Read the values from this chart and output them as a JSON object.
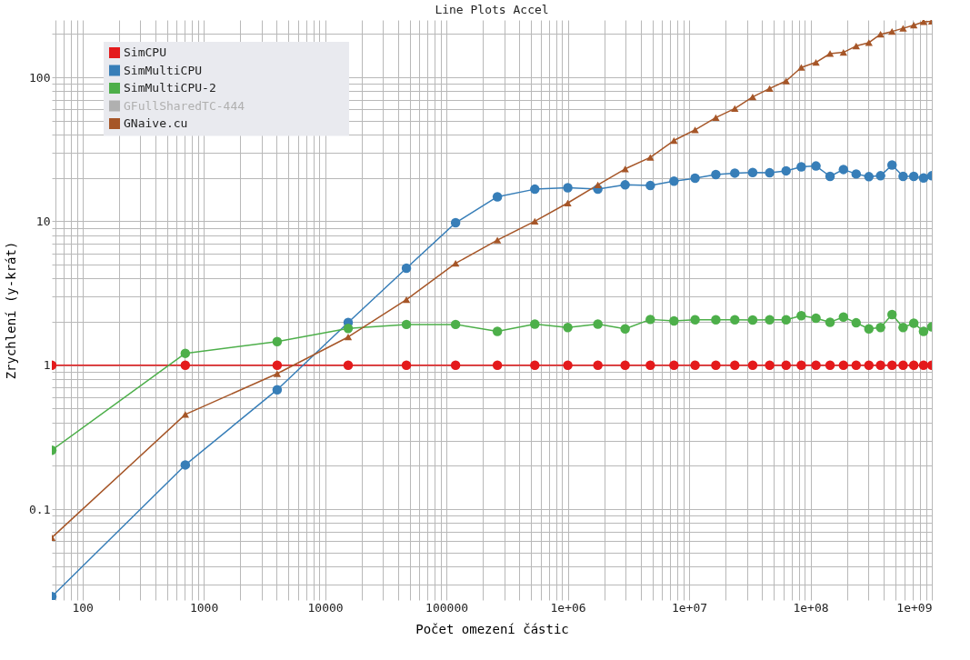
{
  "chart_data": {
    "type": "line",
    "title": "Line Plots Accel",
    "xlabel": "Počet omezení částic",
    "ylabel": "Zrychlení (y-krát)",
    "log": "xy",
    "grid": true,
    "legend": "top left",
    "xlim": [
      56,
      1000000000
    ],
    "ylim": [
      0.0234,
      250
    ],
    "xticks": [
      {
        "value": 60,
        "label": null
      },
      {
        "value": 70,
        "label": null
      },
      {
        "value": 80,
        "label": null
      },
      {
        "value": 90,
        "label": null
      },
      100,
      {
        "value": 200,
        "label": null
      },
      {
        "value": 300,
        "label": null
      },
      {
        "value": 400,
        "label": null
      },
      {
        "value": 500,
        "label": null
      },
      {
        "value": 600,
        "label": null
      },
      {
        "value": 700,
        "label": null
      },
      {
        "value": 800,
        "label": null
      },
      {
        "value": 900,
        "label": null
      },
      1000,
      {
        "value": 2000,
        "label": null
      },
      {
        "value": 3000,
        "label": null
      },
      {
        "value": 4000,
        "label": null
      },
      {
        "value": 5000,
        "label": null
      },
      {
        "value": 6000,
        "label": null
      },
      {
        "value": 7000,
        "label": null
      },
      {
        "value": 8000,
        "label": null
      },
      {
        "value": 9000,
        "label": null
      },
      10000,
      {
        "value": 20000,
        "label": null
      },
      {
        "value": 30000,
        "label": null
      },
      {
        "value": 40000,
        "label": null
      },
      {
        "value": 50000,
        "label": null
      },
      {
        "value": 60000,
        "label": null
      },
      {
        "value": 70000,
        "label": null
      },
      {
        "value": 80000,
        "label": null
      },
      {
        "value": 90000,
        "label": null
      },
      100000,
      {
        "value": 200000,
        "label": null
      },
      {
        "value": 300000,
        "label": null
      },
      {
        "value": 400000,
        "label": null
      },
      {
        "value": 500000,
        "label": null
      },
      {
        "value": 600000,
        "label": null
      },
      {
        "value": 700000,
        "label": null
      },
      {
        "value": 800000,
        "label": null
      },
      {
        "value": 900000,
        "label": null
      },
      {
        "value": 1000000,
        "label": "1e+06"
      },
      {
        "value": 2000000,
        "label": null
      },
      {
        "value": 3000000,
        "label": null
      },
      {
        "value": 4000000,
        "label": null
      },
      {
        "value": 5000000,
        "label": null
      },
      {
        "value": 6000000,
        "label": null
      },
      {
        "value": 7000000,
        "label": null
      },
      {
        "value": 8000000,
        "label": null
      },
      {
        "value": 9000000,
        "label": null
      },
      {
        "value": 10000000,
        "label": "1e+07"
      },
      {
        "value": 20000000,
        "label": null
      },
      {
        "value": 30000000,
        "label": null
      },
      {
        "value": 40000000,
        "label": null
      },
      {
        "value": 50000000,
        "label": null
      },
      {
        "value": 60000000,
        "label": null
      },
      {
        "value": 70000000,
        "label": null
      },
      {
        "value": 80000000,
        "label": null
      },
      {
        "value": 90000000,
        "label": null
      },
      {
        "value": 100000000,
        "label": "1e+08"
      },
      {
        "value": 200000000,
        "label": null
      },
      {
        "value": 300000000,
        "label": null
      },
      {
        "value": 400000000,
        "label": null
      },
      {
        "value": 500000000,
        "label": null
      },
      {
        "value": 600000000,
        "label": null
      },
      {
        "value": 700000000,
        "label": null
      },
      {
        "value": 800000000,
        "label": null
      },
      {
        "value": 900000000,
        "label": null
      },
      {
        "value": 1000000000,
        "label": "1e+09"
      }
    ],
    "yticks": [
      {
        "value": 0.03,
        "label": null
      },
      {
        "value": 0.04,
        "label": null
      },
      {
        "value": 0.05,
        "label": null
      },
      {
        "value": 0.06,
        "label": null
      },
      {
        "value": 0.07,
        "label": null
      },
      {
        "value": 0.08,
        "label": null
      },
      {
        "value": 0.09,
        "label": null
      },
      0.1,
      {
        "value": 0.2,
        "label": null
      },
      {
        "value": 0.3,
        "label": null
      },
      {
        "value": 0.4,
        "label": null
      },
      {
        "value": 0.5,
        "label": null
      },
      {
        "value": 0.6,
        "label": null
      },
      {
        "value": 0.7,
        "label": null
      },
      {
        "value": 0.8,
        "label": null
      },
      {
        "value": 0.9,
        "label": null
      },
      1,
      {
        "value": 2,
        "label": null
      },
      {
        "value": 3,
        "label": null
      },
      {
        "value": 4,
        "label": null
      },
      {
        "value": 5,
        "label": null
      },
      {
        "value": 6,
        "label": null
      },
      {
        "value": 7,
        "label": null
      },
      {
        "value": 8,
        "label": null
      },
      {
        "value": 9,
        "label": null
      },
      10,
      {
        "value": 20,
        "label": null
      },
      {
        "value": 30,
        "label": null
      },
      {
        "value": 40,
        "label": null
      },
      {
        "value": 50,
        "label": null
      },
      {
        "value": 60,
        "label": null
      },
      {
        "value": 70,
        "label": null
      },
      {
        "value": 80,
        "label": null
      },
      {
        "value": 90,
        "label": null
      },
      100,
      {
        "value": 200,
        "label": null
      }
    ],
    "x": [
      56,
      705,
      4030,
      15500,
      46800,
      119000,
      263000,
      535000,
      1000000,
      1770000,
      2970000,
      4790000,
      7500000,
      11200000,
      16600000,
      23800000,
      33400000,
      46100000,
      63000000,
      84000000,
      111000000,
      145000000,
      187000000,
      238000000,
      303000000,
      378000000,
      470000000,
      580000000,
      710000000,
      855000000,
      1000000000
    ],
    "series": [
      {
        "name": "SimCPU",
        "color": "#e41a1c",
        "marker": "circle",
        "values": [
          1,
          1,
          1,
          1,
          1,
          1,
          1,
          1,
          1,
          1,
          1,
          1,
          1,
          1,
          1,
          1,
          1,
          1,
          1,
          1,
          1,
          1,
          1,
          1,
          1,
          1,
          1,
          1,
          1,
          1,
          1
        ]
      },
      {
        "name": "SimMultiCPU",
        "color": "#377eb8",
        "marker": "circle",
        "values": [
          0.0247,
          0.203,
          0.676,
          1.98,
          4.72,
          9.76,
          14.8,
          16.7,
          17.1,
          16.7,
          17.9,
          17.7,
          19.0,
          19.9,
          21.1,
          21.6,
          21.8,
          21.7,
          22.4,
          23.9,
          24.2,
          20.5,
          22.9,
          21.3,
          20.4,
          20.7,
          24.6,
          20.5,
          20.5,
          20.0,
          20.7
        ]
      },
      {
        "name": "SimMultiCPU-2",
        "color": "#4daf4a",
        "marker": "circle",
        "values": [
          0.257,
          1.21,
          1.46,
          1.8,
          1.92,
          1.92,
          1.72,
          1.93,
          1.83,
          1.93,
          1.79,
          2.08,
          2.03,
          2.07,
          2.07,
          2.07,
          2.06,
          2.07,
          2.07,
          2.21,
          2.12,
          1.99,
          2.16,
          1.97,
          1.79,
          1.83,
          2.25,
          1.83,
          1.96,
          1.72,
          1.85
        ]
      },
      {
        "name": "GFullSharedTC-444",
        "color": "#b0b0b0",
        "values": [
          null,
          null,
          null,
          null,
          null,
          null,
          null,
          null,
          null,
          null,
          null,
          null,
          null,
          null,
          null,
          null,
          null,
          null,
          null,
          null,
          null,
          null,
          null,
          null,
          null,
          null,
          null,
          null,
          null,
          null,
          null
        ]
      },
      {
        "name": "GNaive.cu",
        "color": "#a65628",
        "marker": "triangle",
        "values": [
          0.0635,
          0.455,
          0.874,
          1.57,
          2.85,
          5.1,
          7.4,
          10.0,
          13.4,
          17.9,
          23.1,
          27.8,
          36.4,
          43.1,
          52.5,
          60.7,
          73.0,
          83.5,
          94.3,
          117,
          127,
          146,
          149,
          165,
          174,
          199,
          208,
          219,
          230,
          243,
          245
        ]
      }
    ]
  }
}
